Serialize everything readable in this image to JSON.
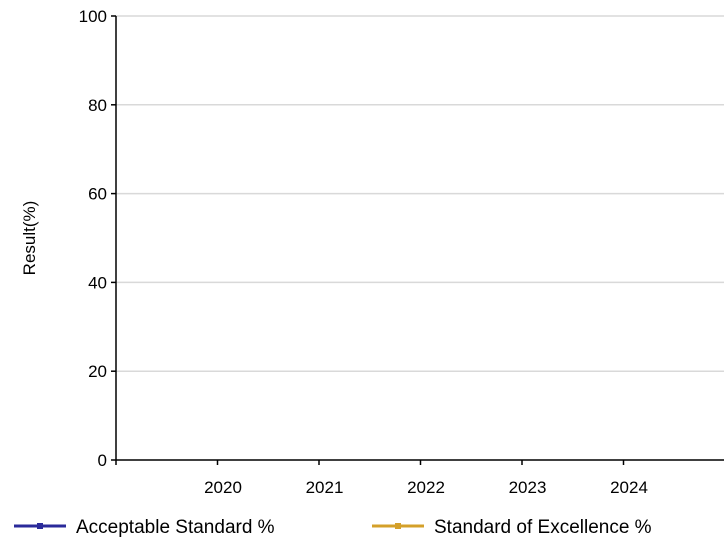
{
  "chart_data": {
    "type": "line",
    "title": "",
    "xlabel": "",
    "ylabel": "Result(%)",
    "categories": [
      "2020",
      "2021",
      "2022",
      "2023",
      "2024"
    ],
    "ylim": [
      0,
      100
    ],
    "yticks": [
      0,
      20,
      40,
      60,
      80,
      100
    ],
    "grid": true,
    "legend_position": "bottom",
    "series": [
      {
        "name": "Acceptable Standard %",
        "color": "#2a2a9a",
        "values": [
          null,
          null,
          null,
          null,
          null
        ]
      },
      {
        "name": "Standard of Excellence %",
        "color": "#d4a02a",
        "values": [
          null,
          null,
          null,
          null,
          null
        ]
      }
    ]
  }
}
